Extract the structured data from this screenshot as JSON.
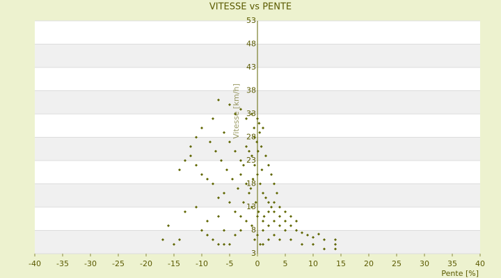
{
  "chart_data": {
    "type": "scatter",
    "title": "VITESSE vs PENTE",
    "x_label": "Pente [%]",
    "y_label": "Vitesse [km/h]",
    "color": "#5f6600",
    "grid": true,
    "xlim": [
      -40,
      40
    ],
    "xticks": [
      -40,
      -35,
      -30,
      -25,
      -20,
      -15,
      -10,
      -5,
      0,
      5,
      10,
      15,
      20,
      25,
      30,
      35,
      40
    ],
    "ylim": [
      3,
      53
    ],
    "yticks": [
      3,
      8,
      13,
      18,
      23,
      28,
      33,
      38,
      43,
      48,
      53
    ],
    "x": [
      0,
      0.5,
      -0.5,
      1,
      -1,
      1.5,
      -1.5,
      2,
      -2,
      0.2,
      -0.3,
      0.8,
      -0.8,
      1.2,
      -1.2,
      2.5,
      -2.5,
      3,
      -3,
      0.1,
      -0.1,
      0.4,
      -0.6,
      0.3,
      -2,
      -4,
      -5,
      -7,
      -3,
      -1,
      4,
      5,
      6,
      7,
      8,
      9,
      10,
      11,
      12,
      14,
      14,
      14,
      12,
      10,
      8,
      6,
      5,
      4,
      3,
      2,
      1,
      0,
      -1,
      -2,
      -3,
      -4,
      -5,
      -6,
      -7,
      -8,
      -9,
      -10,
      -11,
      -12,
      -13,
      -14,
      -12,
      -11,
      -10,
      -8,
      -6,
      -5,
      -4,
      -3,
      -2,
      -1,
      0,
      1,
      2,
      3,
      4,
      5,
      6,
      7,
      0.5,
      -0.5,
      1,
      -5,
      -6,
      -7,
      -8,
      -9,
      -10,
      -14,
      -15,
      -17,
      -16,
      -13,
      -11,
      -9,
      -7,
      -6,
      -4,
      -3,
      2,
      3,
      4,
      1,
      0,
      -0.5,
      0.7,
      1.5,
      2,
      2.5,
      3,
      3.5,
      -1.5,
      -2.5,
      -3.5,
      -4.5,
      -5.5,
      -6.5,
      -7.5,
      -8.5
    ],
    "values": [
      20,
      18,
      22,
      16,
      24,
      15,
      25,
      14,
      26,
      12,
      14,
      21,
      19,
      11,
      17,
      13,
      22,
      12,
      20,
      25,
      27,
      29,
      30,
      31,
      32,
      33,
      35,
      36,
      34,
      33,
      11,
      10,
      9,
      8,
      7.5,
      7,
      6.5,
      7.2,
      6,
      5,
      4,
      6,
      4,
      5,
      5,
      6,
      8,
      9,
      10,
      9,
      8,
      7,
      9,
      10,
      11,
      12,
      14,
      16,
      15,
      18,
      19,
      20,
      22,
      24,
      23,
      21,
      26,
      28,
      30,
      32,
      29,
      27,
      25,
      23,
      18,
      13,
      11,
      10,
      12,
      14,
      13,
      12,
      11,
      10,
      5,
      6,
      5,
      5,
      5,
      5,
      6,
      7,
      8,
      6,
      5,
      6,
      9,
      12,
      13,
      10,
      11,
      8,
      7,
      8,
      6,
      7,
      6,
      30,
      32,
      28,
      26,
      24,
      22,
      20,
      18,
      16,
      16,
      14,
      17,
      19,
      21,
      23,
      25,
      27
    ]
  }
}
